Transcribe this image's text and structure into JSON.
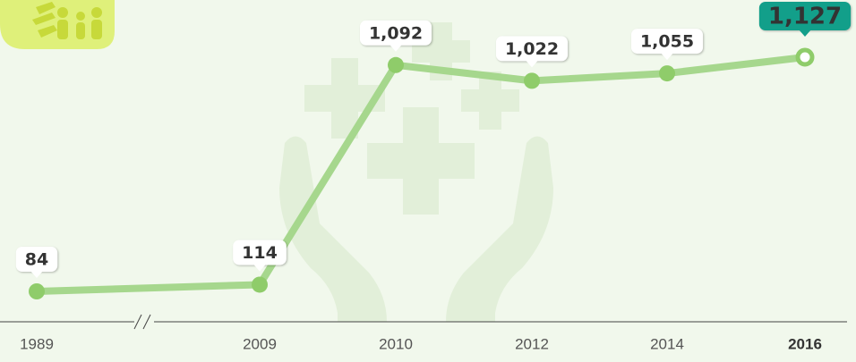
{
  "chart_data": {
    "type": "line",
    "categories": [
      "1989",
      "2009",
      "2010",
      "2012",
      "2014",
      "2016"
    ],
    "values": [
      84,
      114,
      1092,
      1022,
      1055,
      1127
    ],
    "value_labels": [
      "84",
      "114",
      "1,092",
      "1,022",
      "1,055",
      "1,127"
    ],
    "color": "#a6d78d"
  }
}
